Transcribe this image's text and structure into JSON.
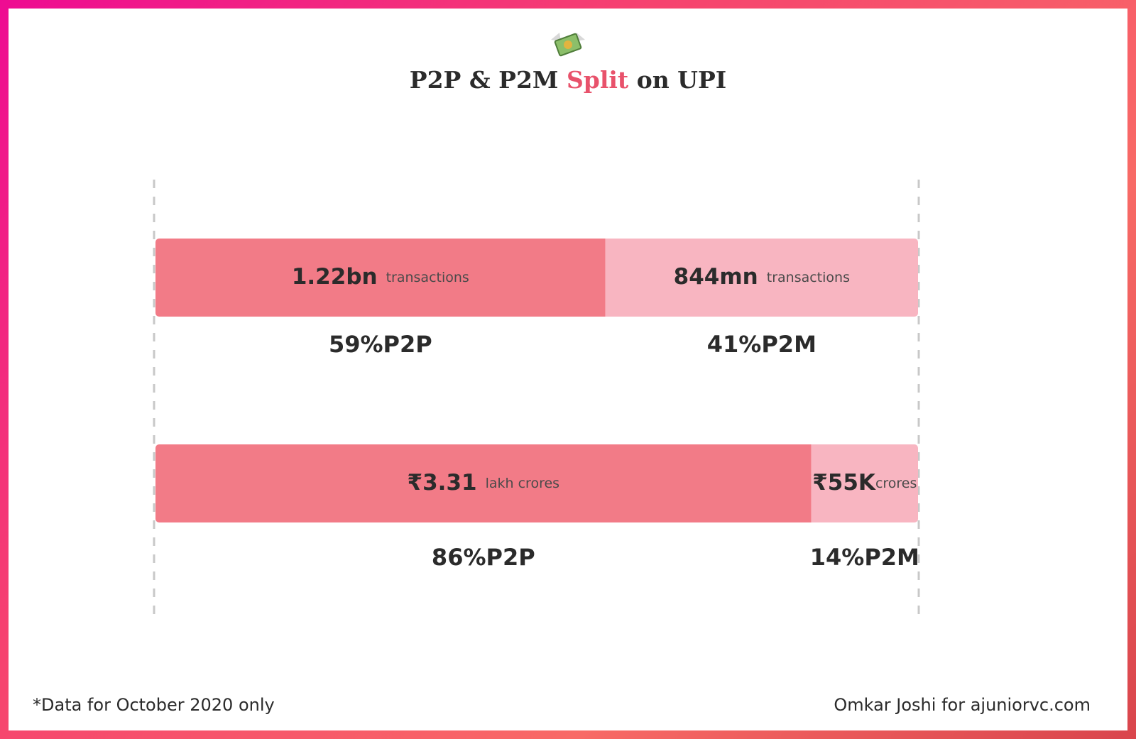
{
  "chart_data": {
    "type": "stacked-horizontal-bar",
    "title": {
      "before": "P2P & P2M",
      "highlight": "Split",
      "after": "on UPI"
    },
    "xlim": [
      0,
      100
    ],
    "series": [
      {
        "name": "P2P",
        "color": "#f27b87",
        "values": [
          59,
          86
        ],
        "value_labels": [
          "59%",
          "86%"
        ],
        "amounts": [
          "1.22bn",
          "₹3.31"
        ],
        "units": [
          "transactions",
          "lakh crores"
        ]
      },
      {
        "name": "P2M",
        "color": "#f8b5c1",
        "values": [
          41,
          14
        ],
        "value_labels": [
          "41%",
          "14%"
        ],
        "amounts": [
          "844mn",
          "₹55K"
        ],
        "units": [
          "transactions",
          "crores"
        ]
      }
    ],
    "footnote": "*Data for October 2020 only",
    "credit": "Omkar Joshi for ajuniorvc.com"
  }
}
